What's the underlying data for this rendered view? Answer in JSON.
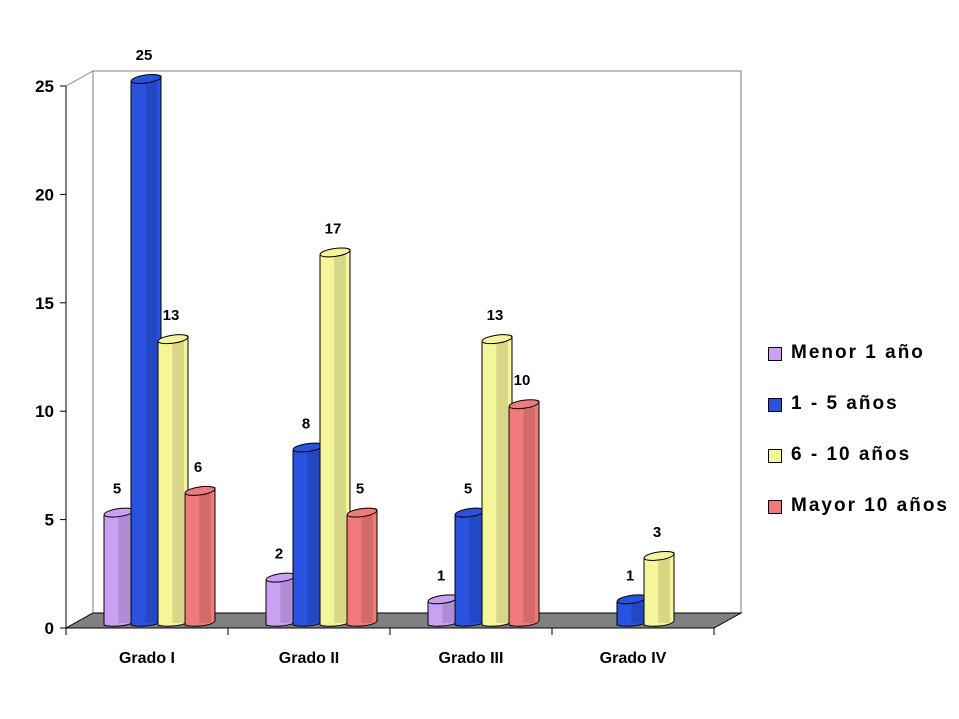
{
  "chart_data": {
    "type": "bar",
    "title": "",
    "xlabel": "",
    "ylabel": "",
    "ylim": [
      0,
      25
    ],
    "yticks": [
      0,
      5,
      10,
      15,
      20,
      25
    ],
    "categories": [
      "Grado I",
      "Grado II",
      "Grado III",
      "Grado IV"
    ],
    "series": [
      {
        "name": "Menor 1 año",
        "color": "#c9a0f2",
        "values": [
          5,
          2,
          1,
          null
        ]
      },
      {
        "name": "1 - 5 años",
        "color": "#2a52e0",
        "values": [
          25,
          8,
          5,
          1
        ]
      },
      {
        "name": "6 - 10 años",
        "color": "#f5f59a",
        "values": [
          13,
          17,
          13,
          3
        ]
      },
      {
        "name": "Mayor 10 años",
        "color": "#f07a7a",
        "values": [
          6,
          5,
          10,
          null
        ]
      }
    ],
    "legend_position": "right",
    "grid": false,
    "style": "3d-cylinder"
  }
}
